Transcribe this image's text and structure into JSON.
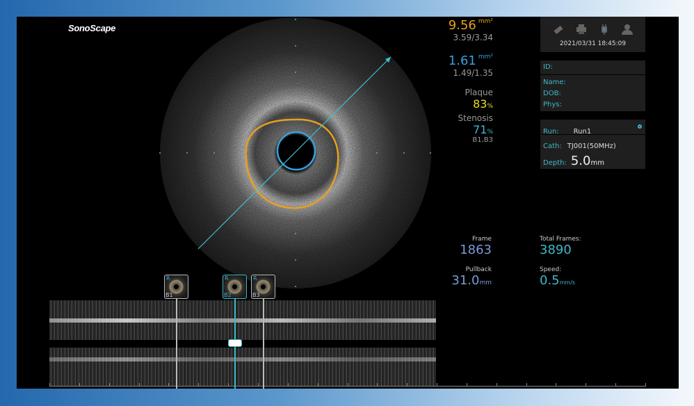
{
  "brand": "SonoScape",
  "measurements": {
    "eem_area": "9.56",
    "eem_unit": "mm²",
    "eem_diam": "3.59/3.34",
    "lumen_area": "1.61",
    "lumen_unit": "mm²",
    "lumen_diam": "1.49/1.35",
    "plaque_label": "Plaque",
    "plaque_value": "83",
    "plaque_unit": "%",
    "stenosis_label": "Stenosis",
    "stenosis_value": "71",
    "stenosis_unit": "%",
    "stenosis_ref": "B1,B3"
  },
  "colors": {
    "eem": "#e8a020",
    "lumen": "#3aa0e0",
    "plaque": "#e8e020",
    "accent": "#3fb8c8"
  },
  "toolbar": {
    "icons": [
      "usb-icon",
      "printer-icon",
      "power-plug-icon",
      "user-icon"
    ],
    "datetime": "2021/03/31 18:45:09"
  },
  "patient": {
    "id_label": "ID:",
    "name_label": "Name:",
    "dob_label": "DOB:",
    "phys_label": "Phys:"
  },
  "run": {
    "run_label": "Run:",
    "run_value": "Run1",
    "cath_label": "Cath:",
    "cath_value": "TJ001(50MHz)",
    "depth_label": "Depth:",
    "depth_value": "5.0",
    "depth_unit": "mm"
  },
  "stats": {
    "frame_label": "Frame",
    "frame_value": "1863",
    "total_label": "Total Frames:",
    "total_value": "3890",
    "pullback_label": "Pullback",
    "pullback_value": "31.0",
    "pullback_unit": "mm",
    "speed_label": "Speed:",
    "speed_value": "0.5",
    "speed_unit": "mm/s"
  },
  "bookmarks": [
    {
      "tag": "R",
      "label": "B1"
    },
    {
      "tag": "R",
      "label": "B2"
    },
    {
      "tag": "R",
      "label": "B3"
    }
  ]
}
